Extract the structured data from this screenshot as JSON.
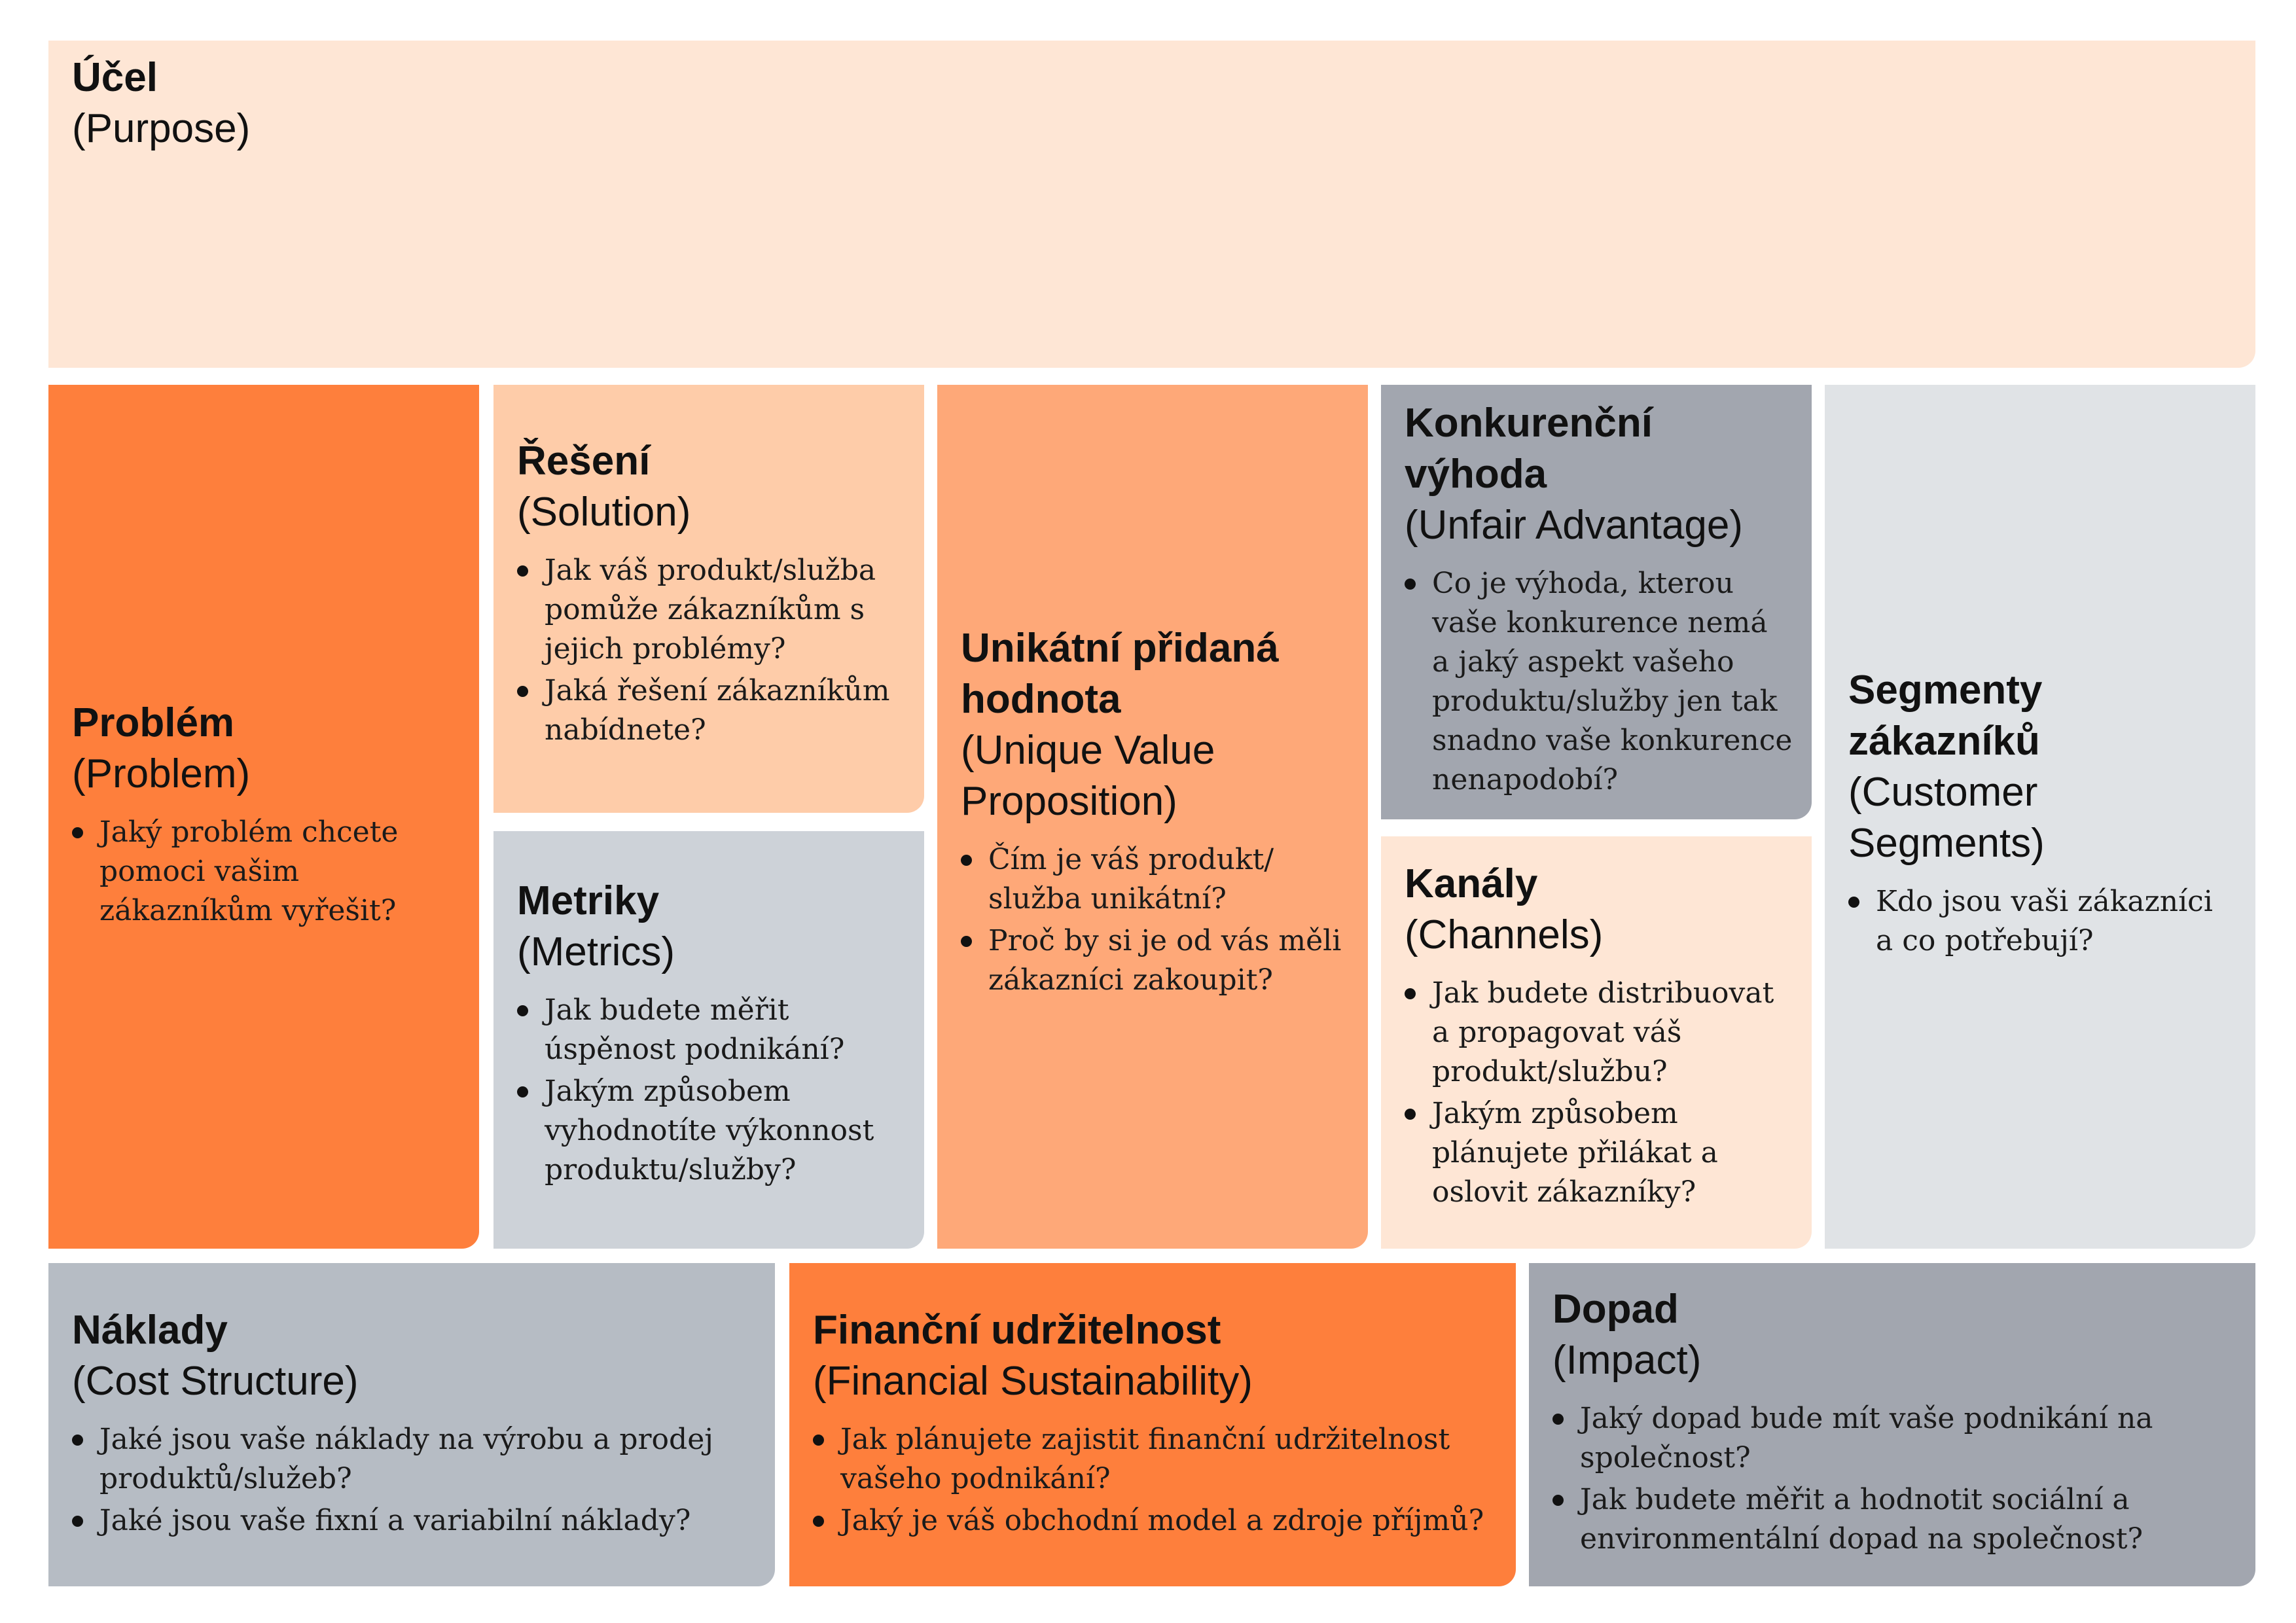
{
  "colors": {
    "peach_light": "#fee6d5",
    "orange": "#fe7f3c",
    "peach": "#fecca9",
    "orange_mid": "#fea878",
    "grey_light": "#cdd2d8",
    "grey_dark": "#a2a6af",
    "grey_pale": "#e0e3e6",
    "grey_mid": "#b6bcc4"
  },
  "purpose": {
    "title": "Účel",
    "subtitle": "(Purpose)"
  },
  "problem": {
    "title": "Problém",
    "subtitle": "(Problem)",
    "questions": [
      "Jaký problém chcete pomoci vašim zákazníkům vyřešit?"
    ]
  },
  "solution": {
    "title": "Řešení",
    "subtitle": "(Solution)",
    "questions": [
      "Jak váš produkt/služba pomůže zákazníkům s jejich problémy?",
      "Jaká řešení zákazníkům nabídnete?"
    ]
  },
  "metrics": {
    "title": "Metriky",
    "subtitle": "(Metrics)",
    "questions": [
      "Jak budete měřit úspěnost podnikání?",
      "Jakým způsobem vyhodnotíte výkonnost produktu/služby?"
    ]
  },
  "uvp": {
    "title": "Unikátní přidaná hodnota",
    "subtitle": "(Unique Value Proposition)",
    "questions": [
      "Čím je váš produkt/ služba unikátní?",
      "Proč by si je od vás měli zákazníci zakoupit?"
    ]
  },
  "unfair": {
    "title": "Konkurenční výhoda",
    "subtitle": "(Unfair Advantage)",
    "questions": [
      "Co je výhoda, kterou vaše konkurence nemá a jaký aspekt vašeho produktu/služby jen tak snadno vaše konkurence nenapodobí?"
    ]
  },
  "channels": {
    "title": "Kanály",
    "subtitle": "(Channels)",
    "questions": [
      "Jak budete distribuovat a propagovat váš produkt/službu?",
      "Jakým způsobem plánujete přilákat a oslovit zákazníky?"
    ]
  },
  "segments": {
    "title": "Segmenty zákazníků",
    "subtitle": "(Customer Segments)",
    "questions": [
      "Kdo jsou vaši zákazníci a co potřebují?"
    ]
  },
  "cost": {
    "title": "Náklady",
    "subtitle": "(Cost Structure)",
    "questions": [
      "Jaké jsou vaše náklady na výrobu a prodej produktů/služeb?",
      "Jaké jsou vaše fixní a variabilní náklady?"
    ]
  },
  "finance": {
    "title": "Finanční udržitelnost",
    "subtitle": "(Financial Sustainability)",
    "questions": [
      "Jak plánujete zajistit finanční udržitelnost vašeho podnikání?",
      "Jaký je váš obchodní model a zdroje příjmů?"
    ]
  },
  "impact": {
    "title": "Dopad",
    "subtitle": "(Impact)",
    "questions": [
      "Jaký dopad bude mít vaše podnikání na společnost?",
      "Jak budete měřit a hodnotit sociální a environmentální dopad na společnost?"
    ]
  }
}
